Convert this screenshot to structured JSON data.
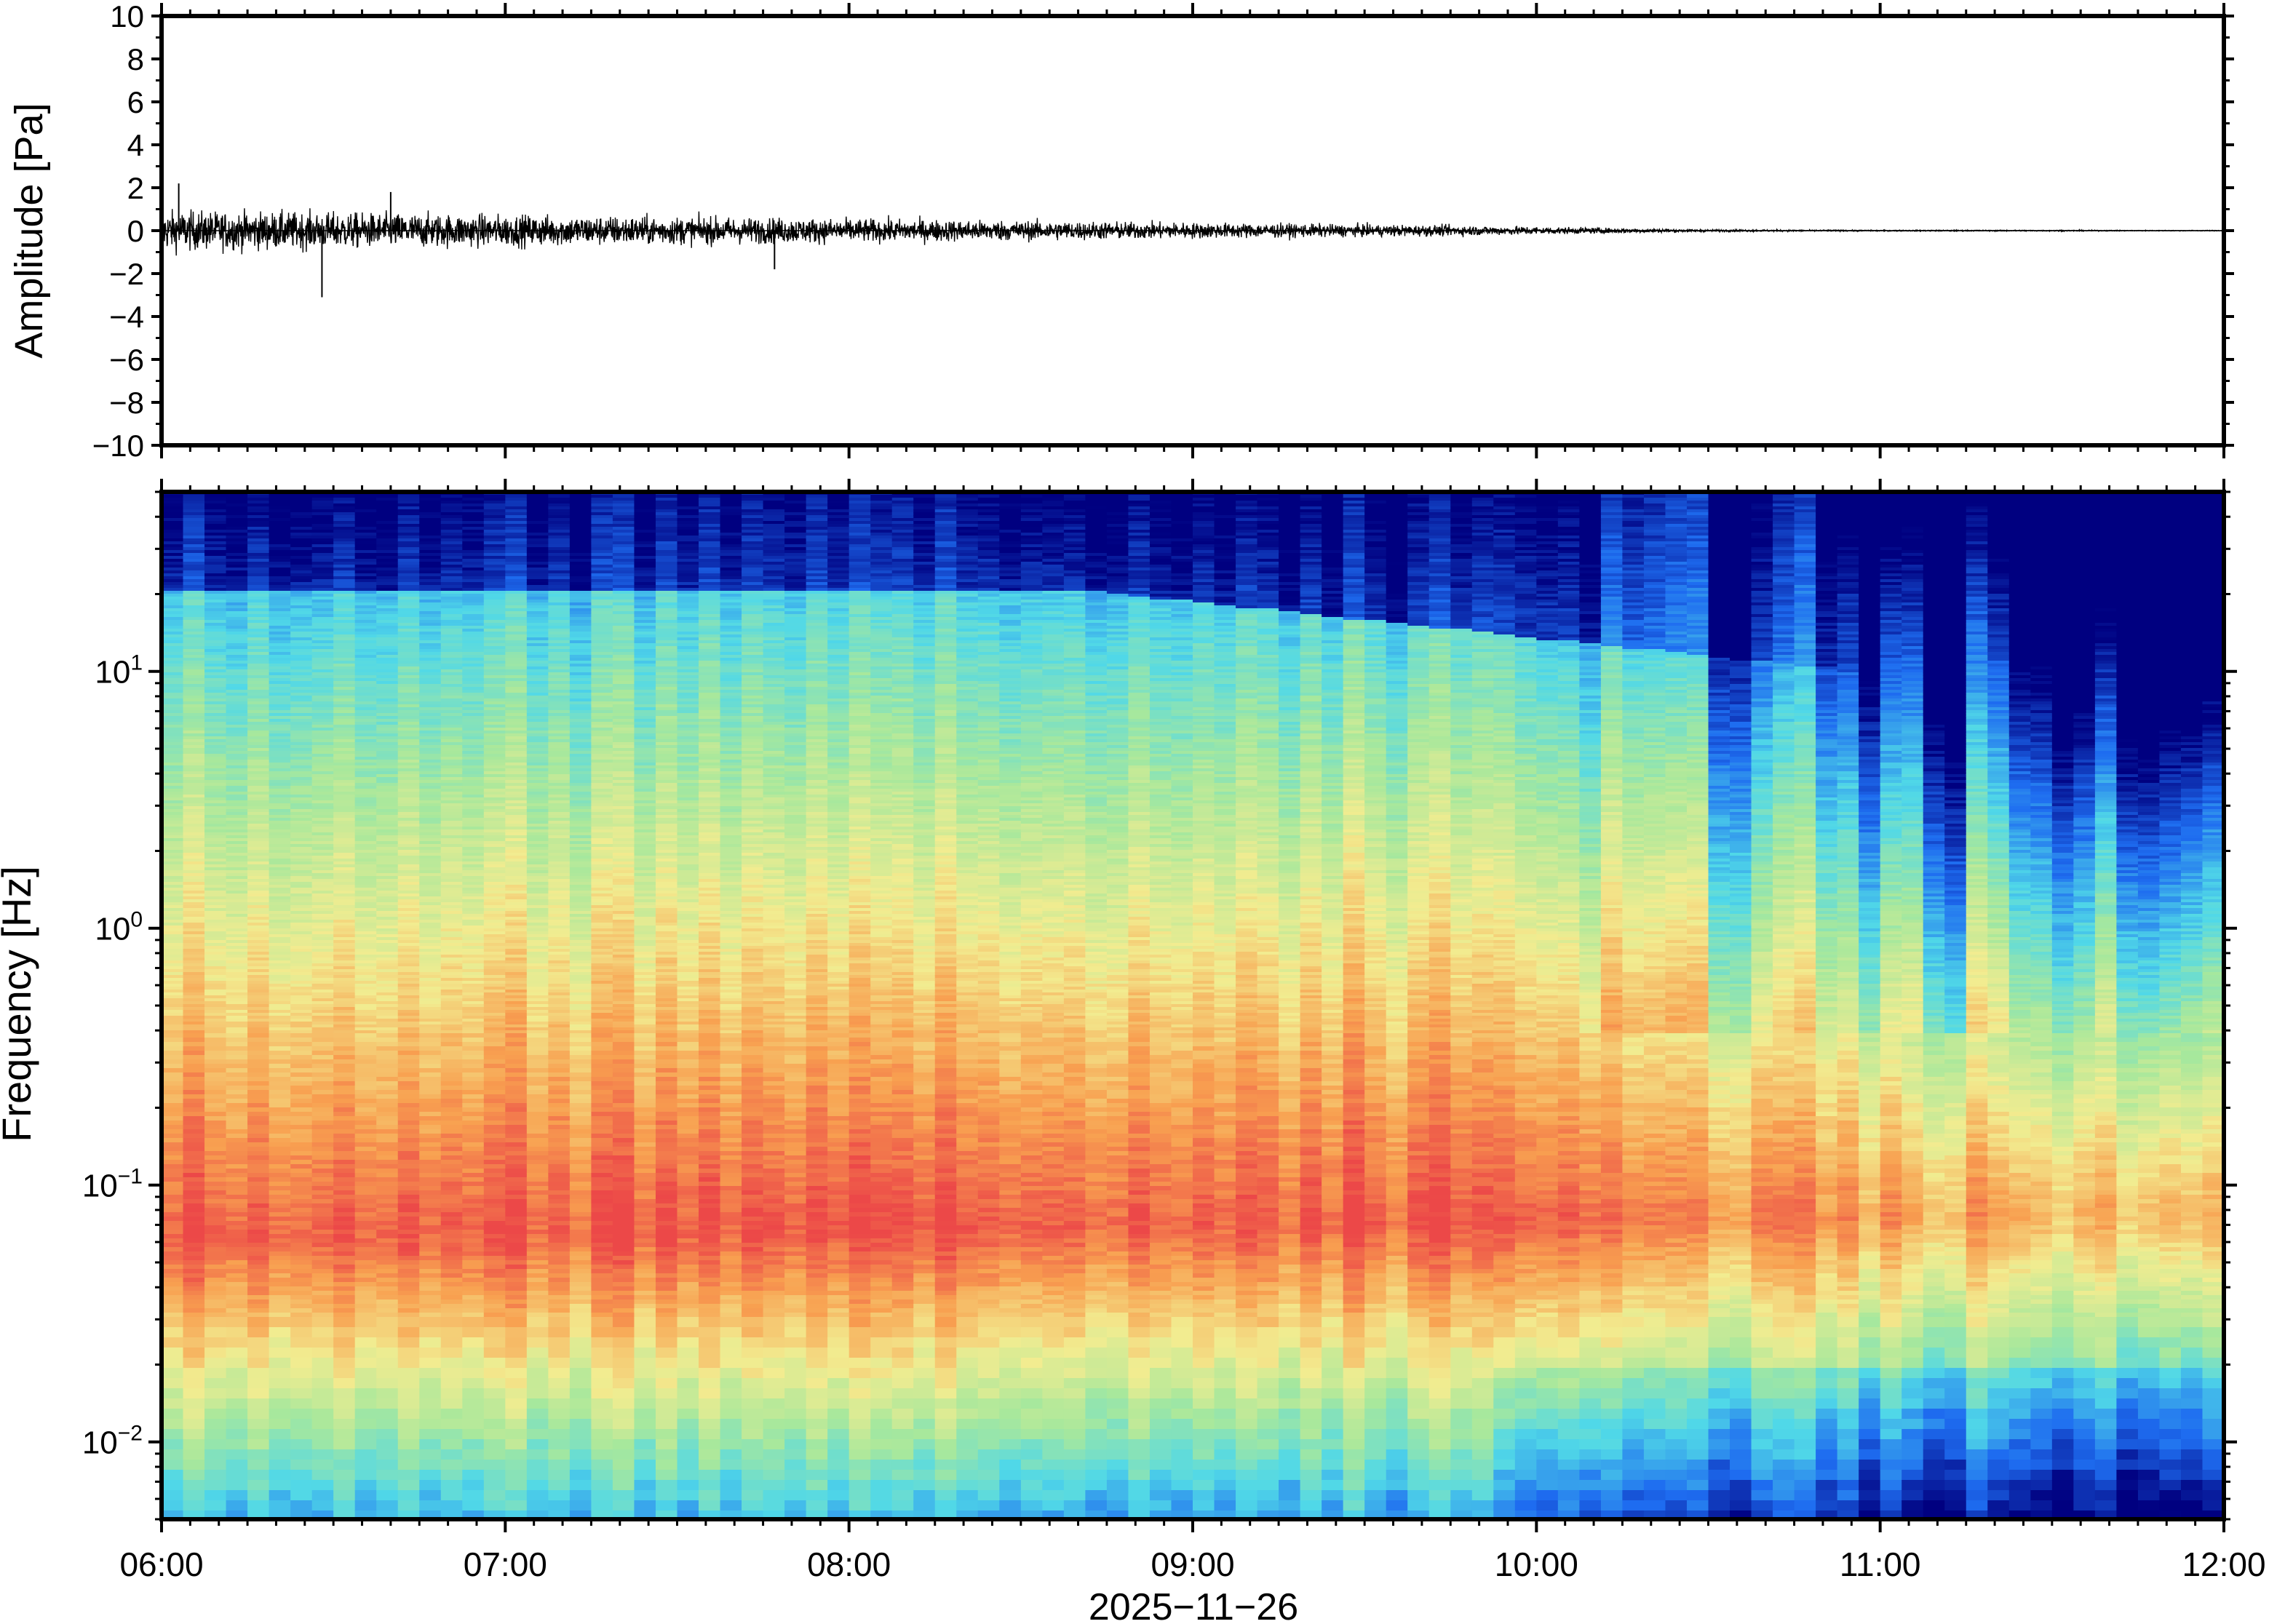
{
  "chart_data": [
    {
      "type": "line",
      "panel": "waveform",
      "ylabel": "Amplitude [Pa]",
      "ylim": [
        -10,
        10
      ],
      "yticks": [
        "10",
        "8",
        "6",
        "4",
        "2",
        "0",
        "−2",
        "−4",
        "−6",
        "−8",
        "−10"
      ],
      "ytick_values": [
        10,
        8,
        6,
        4,
        2,
        0,
        -2,
        -4,
        -6,
        -8,
        -10
      ],
      "series": [
        {
          "values_envelope": {
            "time_hours": [
              6.0,
              6.25,
              6.5,
              6.75,
              7.0,
              7.25,
              7.5,
              7.75,
              8.0,
              8.25,
              8.5,
              8.75,
              9.0,
              9.25,
              9.5,
              9.75,
              10.0,
              10.25,
              10.5,
              10.75,
              11.0,
              11.25,
              11.5,
              11.75,
              12.0
            ],
            "amplitude_pa": [
              1.0,
              0.95,
              0.9,
              0.85,
              0.8,
              0.75,
              0.7,
              0.65,
              0.6,
              0.55,
              0.5,
              0.45,
              0.4,
              0.35,
              0.3,
              0.27,
              0.2,
              0.12,
              0.06,
              0.04,
              0.03,
              0.03,
              0.03,
              0.02,
              0.02
            ]
          },
          "spikes": [
            {
              "time": "06:03",
              "value": 2.2
            },
            {
              "time": "06:28",
              "value": -3.1
            },
            {
              "time": "06:40",
              "value": 1.8
            },
            {
              "time": "07:47",
              "value": -1.8
            }
          ]
        }
      ]
    },
    {
      "type": "heatmap",
      "panel": "spectrogram",
      "ylabel": "Frequency [Hz]",
      "xlabel": "2025−11−26",
      "yscale": "log",
      "ylim": [
        0.005,
        50
      ],
      "yticks": [
        {
          "value": 0.01,
          "base": "10",
          "exp": "−2"
        },
        {
          "value": 0.1,
          "base": "10",
          "exp": "−1"
        },
        {
          "value": 1,
          "base": "10",
          "exp": "0"
        },
        {
          "value": 10,
          "base": "10",
          "exp": "1"
        }
      ],
      "xticks": [
        "06:00",
        "07:00",
        "08:00",
        "09:00",
        "10:00",
        "11:00",
        "12:00"
      ],
      "xlim": [
        "06:00",
        "12:00"
      ],
      "colormap": "jet",
      "colors": {
        "low": "#000080",
        "blue": "#1e6cf0",
        "cyan": "#50d8e8",
        "green": "#a8e89c",
        "yellow": "#f2ec90",
        "orange": "#f8a050",
        "red": "#ec4848"
      }
    }
  ]
}
